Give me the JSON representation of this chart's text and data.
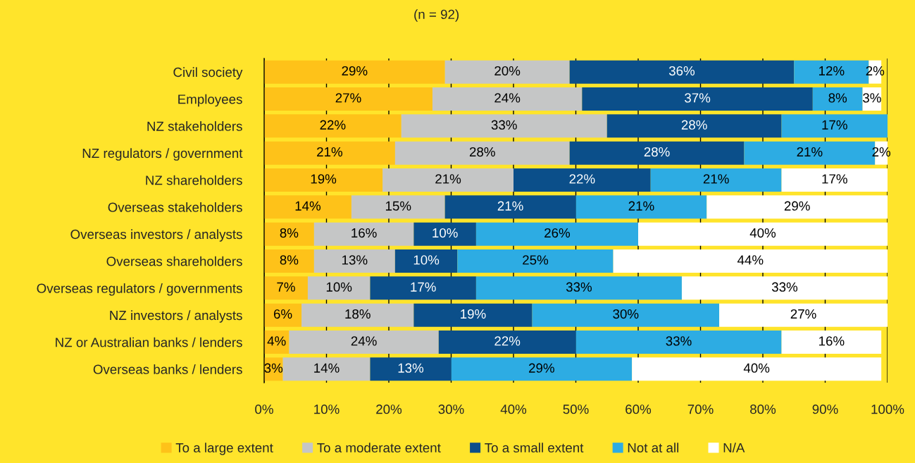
{
  "chart_data": {
    "type": "bar",
    "orientation": "horizontal",
    "stacked": true,
    "title": "(n = 92)",
    "categories": [
      "Civil society",
      "Employees",
      "NZ stakeholders",
      "NZ regulators / government",
      "NZ shareholders",
      "Overseas stakeholders",
      "Overseas investors / analysts",
      "Overseas shareholders",
      "Overseas regulators / governments",
      "NZ investors / analysts",
      "NZ or Australian banks / lenders",
      "Overseas banks / lenders"
    ],
    "series": [
      {
        "name": "To a large extent",
        "color": "#fec219",
        "values": [
          29,
          27,
          22,
          21,
          19,
          14,
          8,
          8,
          7,
          6,
          4,
          3
        ],
        "value_labels": [
          "29%",
          "27%",
          "22%",
          "21%",
          "19%",
          "14%",
          "8%",
          "8%",
          "7%",
          "6%",
          "4%",
          "3%"
        ]
      },
      {
        "name": "To a moderate extent",
        "color": "#c5c6c6",
        "values": [
          20,
          24,
          33,
          28,
          21,
          15,
          16,
          13,
          10,
          18,
          24,
          14
        ],
        "value_labels": [
          "20%",
          "24%",
          "33%",
          "28%",
          "21%",
          "15%",
          "16%",
          "13%",
          "10%",
          "18%",
          "24%",
          "14%"
        ]
      },
      {
        "name": "To a small extent",
        "color": "#0b4f8a",
        "values": [
          36,
          37,
          28,
          28,
          22,
          21,
          10,
          10,
          17,
          19,
          22,
          13
        ],
        "value_labels": [
          "36%",
          "37%",
          "28%",
          "28%",
          "22%",
          "21%",
          "10%",
          "10%",
          "17%",
          "19%",
          "22%",
          "13%"
        ]
      },
      {
        "name": "Not at all",
        "color": "#2dace3",
        "values": [
          12,
          8,
          17,
          21,
          21,
          21,
          26,
          25,
          33,
          30,
          33,
          29
        ],
        "value_labels": [
          "12%",
          "8%",
          "17%",
          "21%",
          "21%",
          "21%",
          "26%",
          "25%",
          "33%",
          "30%",
          "33%",
          "29%"
        ]
      },
      {
        "name": "N/A",
        "color": "#ffffff",
        "values": [
          2,
          3,
          null,
          2,
          17,
          29,
          40,
          44,
          33,
          27,
          16,
          40
        ],
        "value_labels": [
          "2%",
          "3%",
          null,
          "2%",
          "17%",
          "29%",
          "40%",
          "44%",
          "33%",
          "27%",
          "16%",
          "40%"
        ]
      }
    ],
    "xlim": [
      0,
      100
    ],
    "xticks": [
      {
        "value": 0,
        "label": "0%"
      },
      {
        "value": 10,
        "label": "10%"
      },
      {
        "value": 20,
        "label": "20%"
      },
      {
        "value": 30,
        "label": "30%"
      },
      {
        "value": 40,
        "label": "40%"
      },
      {
        "value": 50,
        "label": "50%"
      },
      {
        "value": 60,
        "label": "60%"
      },
      {
        "value": 70,
        "label": "70%"
      },
      {
        "value": 80,
        "label": "80%"
      },
      {
        "value": 90,
        "label": "90%"
      },
      {
        "value": 100,
        "label": "100%"
      }
    ],
    "grid": "x",
    "legend": "bottom"
  }
}
